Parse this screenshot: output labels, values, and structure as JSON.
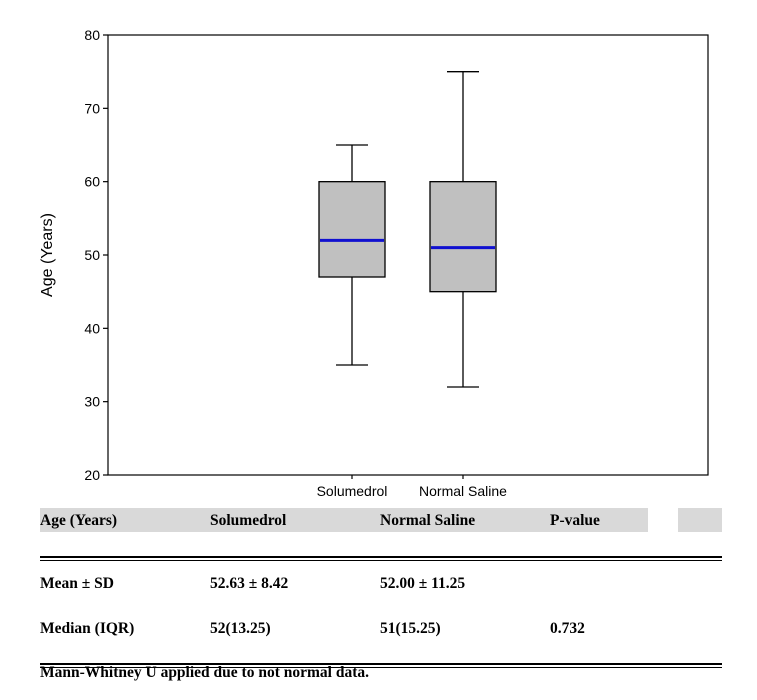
{
  "chart_data": {
    "type": "box",
    "ylabel": "Age (Years)",
    "xlabel": "",
    "ylim": [
      20,
      80
    ],
    "yticks": [
      20,
      30,
      40,
      50,
      60,
      70,
      80
    ],
    "grid": false,
    "categories": [
      "Solumedrol",
      "Normal Saline"
    ],
    "boxes": [
      {
        "category": "Solumedrol",
        "min": 35,
        "q1": 47,
        "median": 52,
        "q3": 60,
        "max": 65
      },
      {
        "category": "Normal Saline",
        "min": 32,
        "q1": 45,
        "median": 51,
        "q3": 60,
        "max": 75
      }
    ],
    "colors": {
      "box_fill": "#c0c0c0",
      "median_line": "#1010d0",
      "frame": "#000000"
    }
  },
  "table": {
    "headers": [
      "Age (Years)",
      "Solumedrol",
      "Normal Saline",
      "P-value"
    ],
    "rows": [
      [
        "Mean ± SD",
        "52.63 ± 8.42",
        "52.00 ± 11.25",
        ""
      ],
      [
        "Median (IQR)",
        "52(13.25)",
        "51(15.25)",
        "0.732"
      ]
    ],
    "footnote": "Mann-Whitney U applied due to not normal data."
  }
}
